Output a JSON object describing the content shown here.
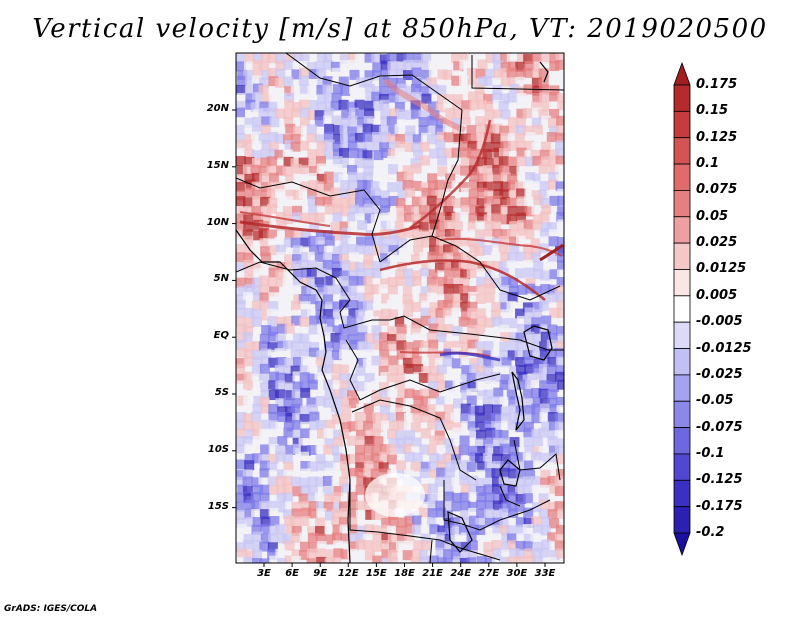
{
  "title": "Vertical velocity [m/s] at 850hPa, VT: 2019020500",
  "credit": "GrADS: IGES/COLA",
  "map": {
    "y_labels": [
      "20N",
      "15N",
      "10N",
      "5N",
      "EQ",
      "5S",
      "10S",
      "15S"
    ],
    "x_labels": [
      "3E",
      "6E",
      "9E",
      "12E",
      "15E",
      "18E",
      "21E",
      "24E",
      "27E",
      "30E",
      "33E"
    ],
    "field_colors": {
      "strong_neg": "#3a2fc0",
      "neg": "#7f7bea",
      "weak_neg": "#c9c7f4",
      "neutral": "#f2f2f7",
      "weak_pos": "#f4c0c0",
      "pos": "#e68080",
      "strong_pos": "#b52a2a"
    }
  },
  "colorbar": {
    "labels": [
      "0.175",
      "0.15",
      "0.125",
      "0.1",
      "0.075",
      "0.05",
      "0.025",
      "0.0125",
      "0.005",
      "-0.005",
      "-0.0125",
      "-0.025",
      "-0.05",
      "-0.075",
      "-0.1",
      "-0.125",
      "-0.175",
      "-0.2"
    ],
    "colors": [
      "#a31e1e",
      "#b52a2a",
      "#c63c3c",
      "#d45454",
      "#e06b6b",
      "#e68080",
      "#eea0a0",
      "#f5c8c8",
      "#fbe6e6",
      "#ffffff",
      "#dcdaf7",
      "#c2c0f2",
      "#a5a2ee",
      "#8c88e8",
      "#6e68df",
      "#5048d2",
      "#3b30c4",
      "#2b20b2",
      "#1c0ea0"
    ]
  }
}
